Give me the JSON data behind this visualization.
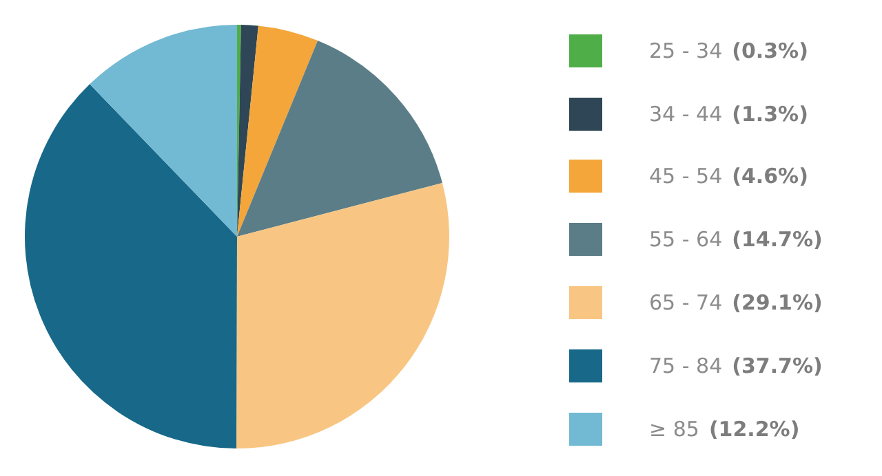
{
  "chart_data": {
    "type": "pie",
    "categories": [
      "25 - 34",
      "34 - 44",
      "45 - 54",
      "55 - 64",
      "65 - 74",
      "75 - 84",
      "≥ 85"
    ],
    "values": [
      0.3,
      1.3,
      4.6,
      14.7,
      29.1,
      37.7,
      12.2
    ],
    "value_labels": [
      "(0.3%)",
      "(1.3%)",
      "(4.6%)",
      "(14.7%)",
      "(29.1%)",
      "(37.7%)",
      "(12.2%)"
    ],
    "colors": [
      "#4fae48",
      "#2e4655",
      "#f4a63a",
      "#5b7d87",
      "#f8c682",
      "#176889",
      "#72b9d3"
    ],
    "legend": "right"
  }
}
